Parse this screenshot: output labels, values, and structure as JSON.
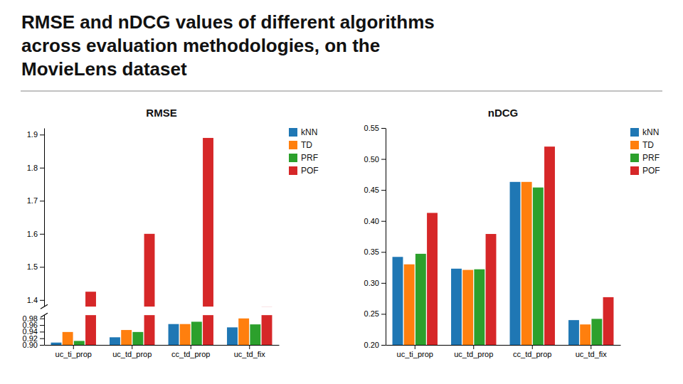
{
  "title": [
    "RMSE and nDCG values of different algorithms",
    "across evaluation methodologies, on the",
    "MovieLens dataset"
  ],
  "chart_data": [
    {
      "type": "bar",
      "title": "RMSE",
      "categories": [
        "uc_ti_prop",
        "uc_td_prop",
        "cc_td_prop",
        "uc_td_fix"
      ],
      "series": [
        {
          "name": "kNN",
          "values": [
            0.907,
            0.923,
            0.963,
            0.953
          ]
        },
        {
          "name": "TD",
          "values": [
            0.939,
            0.945,
            0.963,
            0.98
          ]
        },
        {
          "name": "PRF",
          "values": [
            0.912,
            0.939,
            0.97,
            0.962
          ]
        },
        {
          "name": "POF",
          "values": [
            1.425,
            1.6,
            1.89,
            1.38
          ]
        }
      ],
      "ylim": [
        [
          0.9,
          0.99
        ],
        [
          1.38,
          1.92
        ]
      ],
      "yticks": [
        {
          "value": 0.9,
          "label": "0.90"
        },
        0.92,
        0.94,
        0.96,
        0.98,
        1.4,
        1.5,
        1.6,
        1.7,
        1.8,
        1.9
      ],
      "legend": "upper right"
    },
    {
      "type": "bar",
      "title": "nDCG",
      "categories": [
        "uc_ti_prop",
        "uc_td_prop",
        "cc_td_prop",
        "uc_td_fix"
      ],
      "series": [
        {
          "name": "kNN",
          "values": [
            0.342,
            0.323,
            0.463,
            0.24
          ]
        },
        {
          "name": "TD",
          "values": [
            0.33,
            0.321,
            0.463,
            0.233
          ]
        },
        {
          "name": "PRF",
          "values": [
            0.347,
            0.322,
            0.454,
            0.242
          ]
        },
        {
          "name": "POF",
          "values": [
            0.413,
            0.379,
            0.52,
            0.277
          ]
        }
      ],
      "ylim": [
        0.2,
        0.55
      ],
      "yticks": [
        {
          "value": 0.2,
          "label": "0.20"
        },
        0.25,
        {
          "value": 0.3,
          "label": "0.30"
        },
        0.35,
        {
          "value": 0.4,
          "label": "0.40"
        },
        0.45,
        {
          "value": 0.5,
          "label": "0.50"
        },
        0.55
      ],
      "legend": "upper right"
    }
  ]
}
